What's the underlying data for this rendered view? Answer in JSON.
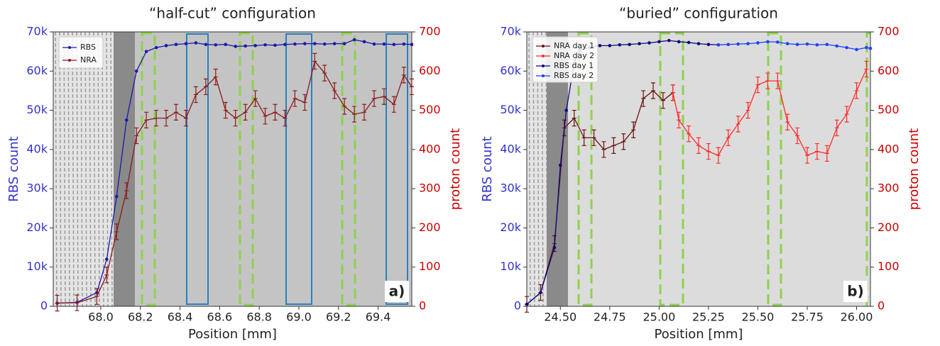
{
  "chart_data": [
    {
      "type": "line",
      "title": "“half-cut” configuration",
      "xlabel": "Position [mm]",
      "ylabel": "RBS count",
      "y2label": "proton count",
      "panel_label": "a)",
      "xlim": [
        67.76,
        69.57
      ],
      "xticks": [
        {
          "value": 68,
          "label": "68.0"
        },
        68.2,
        68.4,
        68.6,
        68.8,
        {
          "value": 69,
          "label": "69.0"
        },
        69.2,
        69.4
      ],
      "ylim": [
        0,
        70000
      ],
      "yticks": [
        0,
        {
          "value": 10000,
          "label": "10k"
        },
        {
          "value": 20000,
          "label": "20k"
        },
        {
          "value": 30000,
          "label": "30k"
        },
        {
          "value": 40000,
          "label": "40k"
        },
        {
          "value": 50000,
          "label": "50k"
        },
        {
          "value": 60000,
          "label": "60k"
        },
        {
          "value": 70000,
          "label": "70k"
        }
      ],
      "y2lim": [
        0,
        700
      ],
      "y2ticks": [
        0,
        100,
        200,
        300,
        400,
        500,
        600,
        700
      ],
      "series": [
        {
          "name": "RBS",
          "color": "#1a1aa8",
          "x": [
            67.78,
            67.88,
            67.98,
            68.03,
            68.08,
            68.13,
            68.18,
            68.23,
            68.28,
            68.33,
            68.38,
            68.43,
            68.48,
            68.53,
            68.58,
            68.63,
            68.68,
            68.73,
            68.78,
            68.83,
            68.88,
            68.93,
            68.98,
            69.03,
            69.08,
            69.13,
            69.18,
            69.23,
            69.28,
            69.33,
            69.38,
            69.43,
            69.48,
            69.53,
            69.57
          ],
          "values": [
            800,
            1000,
            3500,
            12000,
            28000,
            47500,
            60000,
            65000,
            66000,
            66500,
            66800,
            67000,
            67200,
            66800,
            66700,
            66800,
            66300,
            66400,
            66500,
            66700,
            66600,
            66800,
            66900,
            67000,
            67000,
            66900,
            67000,
            67000,
            68000,
            67500,
            66900,
            66900,
            66800,
            66900,
            66800
          ]
        },
        {
          "name": "NRA",
          "color": "#8b1a1a",
          "axis": "y2",
          "x": [
            67.78,
            67.88,
            67.98,
            68.03,
            68.08,
            68.13,
            68.18,
            68.23,
            68.28,
            68.33,
            68.38,
            68.43,
            68.48,
            68.53,
            68.58,
            68.63,
            68.68,
            68.73,
            68.78,
            68.83,
            68.88,
            68.93,
            68.98,
            69.03,
            69.08,
            69.13,
            69.18,
            69.23,
            69.28,
            69.33,
            69.38,
            69.43,
            69.48,
            69.53,
            69.57
          ],
          "values": [
            8,
            9,
            25,
            80,
            190,
            295,
            435,
            475,
            480,
            480,
            495,
            480,
            540,
            560,
            585,
            500,
            480,
            495,
            530,
            485,
            495,
            480,
            530,
            520,
            625,
            595,
            550,
            510,
            490,
            495,
            530,
            535,
            515,
            590,
            560
          ],
          "errors": [
            20,
            20,
            20,
            20,
            20,
            20,
            20,
            20,
            20,
            20,
            20,
            20,
            20,
            20,
            20,
            20,
            20,
            20,
            20,
            20,
            20,
            20,
            20,
            20,
            20,
            20,
            20,
            20,
            20,
            20,
            20,
            20,
            20,
            20,
            20
          ]
        }
      ]
    },
    {
      "type": "line",
      "title": "“buried” configuration",
      "xlabel": "Position [mm]",
      "ylabel": "RBS count",
      "y2label": "proton count",
      "panel_label": "b)",
      "xlim": [
        24.33,
        26.07
      ],
      "xticks": [
        {
          "value": 24.5,
          "label": "24.50"
        },
        24.75,
        {
          "value": 25,
          "label": "25.00"
        },
        25.25,
        {
          "value": 25.5,
          "label": "25.50"
        },
        25.75,
        {
          "value": 26,
          "label": "26.00"
        }
      ],
      "ylim": [
        0,
        70000
      ],
      "yticks": [
        0,
        {
          "value": 10000,
          "label": "10k"
        },
        {
          "value": 20000,
          "label": "20k"
        },
        {
          "value": 30000,
          "label": "30k"
        },
        {
          "value": 40000,
          "label": "40k"
        },
        {
          "value": 50000,
          "label": "50k"
        },
        {
          "value": 60000,
          "label": "60k"
        },
        {
          "value": 70000,
          "label": "70k"
        }
      ],
      "y2lim": [
        0,
        700
      ],
      "y2ticks": [
        0,
        100,
        200,
        300,
        400,
        500,
        600,
        700
      ],
      "series": [
        {
          "name": "NRA day 1",
          "color": "#6b1010",
          "axis": "y2",
          "x": [
            24.33,
            24.4,
            24.47,
            24.52,
            24.57,
            24.62,
            24.67,
            24.72,
            24.77,
            24.82,
            24.87,
            24.92,
            24.97,
            25.02,
            25.07
          ],
          "values": [
            5,
            35,
            160,
            455,
            480,
            430,
            430,
            400,
            410,
            420,
            450,
            530,
            550,
            525,
            545
          ],
          "errors": [
            20,
            20,
            20,
            20,
            20,
            20,
            20,
            20,
            20,
            20,
            20,
            20,
            20,
            20,
            20
          ]
        },
        {
          "name": "NRA day 2",
          "color": "#ff2a2a",
          "axis": "y2",
          "x": [
            25.07,
            25.1,
            25.15,
            25.2,
            25.25,
            25.3,
            25.35,
            25.4,
            25.45,
            25.5,
            25.55,
            25.6,
            25.65,
            25.7,
            25.75,
            25.8,
            25.85,
            25.9,
            25.95,
            26,
            26.05
          ],
          "values": [
            545,
            475,
            440,
            410,
            395,
            385,
            430,
            465,
            500,
            565,
            575,
            575,
            470,
            435,
            385,
            395,
            390,
            455,
            490,
            550,
            605
          ],
          "errors": [
            20,
            20,
            20,
            20,
            20,
            20,
            20,
            20,
            20,
            20,
            20,
            20,
            20,
            20,
            20,
            20,
            20,
            20,
            20,
            20,
            20
          ]
        },
        {
          "name": "RBS day 1",
          "color": "#0a0a80",
          "x": [
            24.33,
            24.4,
            24.47,
            24.5,
            24.53,
            24.57,
            24.6,
            24.65,
            24.7,
            24.75,
            24.8,
            24.85,
            24.9,
            24.95,
            25,
            25.05,
            25.1,
            25.15,
            25.2,
            25.25,
            25.3
          ],
          "values": [
            500,
            3500,
            15000,
            36000,
            50000,
            62000,
            65500,
            66000,
            66500,
            66500,
            66700,
            66800,
            67000,
            67200,
            67500,
            67800,
            67500,
            67300,
            67000,
            66800,
            66700
          ]
        },
        {
          "name": "RBS day 2",
          "color": "#1f3fff",
          "x": [
            25.3,
            25.35,
            25.4,
            25.45,
            25.5,
            25.55,
            25.6,
            25.65,
            25.7,
            25.75,
            25.8,
            25.85,
            25.9,
            25.95,
            26,
            26.05,
            26.07
          ],
          "values": [
            66700,
            66800,
            66900,
            67000,
            67200,
            67500,
            67400,
            67000,
            66800,
            66900,
            66700,
            66800,
            66400,
            66000,
            65500,
            66000,
            65800
          ]
        }
      ]
    }
  ]
}
